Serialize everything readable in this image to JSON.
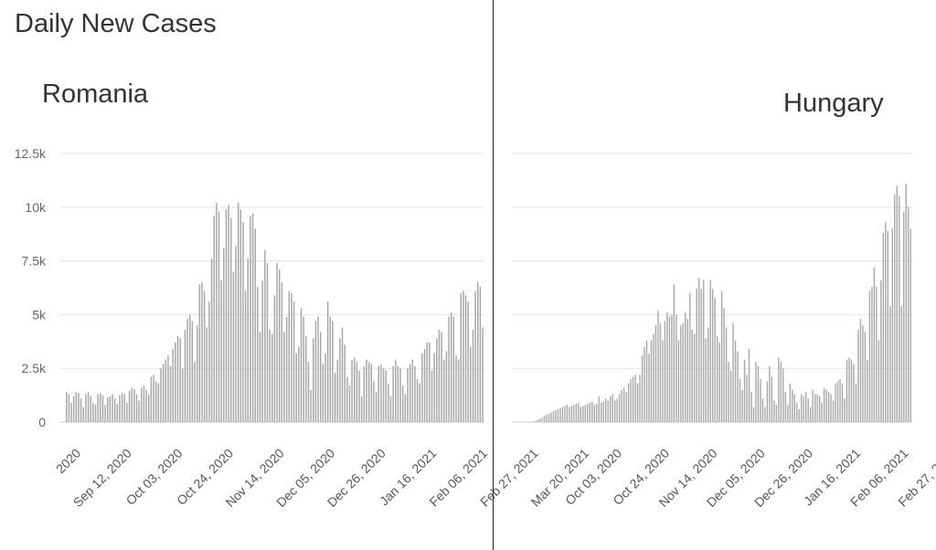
{
  "page": {
    "title": "Daily New Cases"
  },
  "chart_data": [
    {
      "type": "bar",
      "title": "Romania",
      "ylim": [
        0,
        12500
      ],
      "yticks": [
        0,
        2500,
        5000,
        7500,
        10000,
        12500
      ],
      "ytick_labels": [
        "0",
        "2.5k",
        "5k",
        "7.5k",
        "10k",
        "12.5k"
      ],
      "x_tick_labels": [
        "2020",
        "Sep 12, 2020",
        "Oct 03, 2020",
        "Oct 24, 2020",
        "Nov 14, 2020",
        "Dec 05, 2020",
        "Dec 26, 2020",
        "Jan 16, 2021",
        "Feb 06, 2021",
        "Feb 27, 2021",
        "Mar 20, 2021"
      ],
      "x_tick_index": [
        5,
        26,
        47,
        68,
        89,
        110,
        131,
        152,
        173,
        194,
        215
      ],
      "bar_color": "#a6a6a6",
      "grid": true,
      "series": [
        {
          "values": [
            1400,
            1300,
            900,
            1200,
            1400,
            1350,
            1100,
            700,
            1300,
            1400,
            1200,
            900,
            800,
            1300,
            1350,
            1250,
            800,
            1150,
            1200,
            1300,
            1100,
            850,
            1250,
            1350,
            1300,
            900,
            1450,
            1600,
            1550,
            1300,
            1000,
            1600,
            1700,
            1500,
            1300,
            2100,
            2200,
            1900,
            1800,
            2500,
            2700,
            2900,
            3100,
            2600,
            3400,
            3700,
            4000,
            3900,
            2500,
            4300,
            4800,
            5000,
            4700,
            2800,
            4500,
            6400,
            6500,
            6100,
            4400,
            5600,
            7600,
            9600,
            10200,
            9800,
            6600,
            8100,
            9900,
            10100,
            9500,
            7000,
            8200,
            10200,
            9900,
            9300,
            6100,
            7600,
            9600,
            9700,
            9000,
            6300,
            4200,
            6600,
            8000,
            7400,
            4300,
            4100,
            5900,
            7400,
            7100,
            6500,
            4200,
            4900,
            6100,
            6000,
            5600,
            3200,
            3500,
            5300,
            4900,
            4000,
            2800,
            1500,
            3900,
            4700,
            4900,
            4200,
            2700,
            3200,
            5600,
            4900,
            4700,
            2300,
            2900,
            3900,
            4400,
            3600,
            2100,
            1700,
            2900,
            3000,
            2800,
            2400,
            1200,
            2600,
            2900,
            2800,
            2700,
            1900,
            1400,
            2600,
            2700,
            2500,
            2400,
            1800,
            1200,
            2600,
            2900,
            2600,
            2500,
            1700,
            1300,
            2500,
            2700,
            2900,
            2600,
            2000,
            1800,
            3200,
            3400,
            3700,
            3700,
            2400,
            3200,
            3900,
            4300,
            4200,
            2900,
            3300,
            4900,
            5100,
            4900,
            3100,
            2900,
            6000,
            6100,
            5900,
            5600,
            3500,
            4300,
            6100,
            6500,
            6300,
            4400
          ]
        }
      ]
    },
    {
      "type": "bar",
      "title": "Hungary",
      "ylim": [
        0,
        12500
      ],
      "yticks": [
        0,
        2500,
        5000,
        7500,
        10000,
        12500
      ],
      "x_tick_labels": [
        "Oct 03, 2020",
        "Oct 24, 2020",
        "Nov 14, 2020",
        "Dec 05, 2020",
        "Dec 26, 2020",
        "Jan 16, 2021",
        "Feb 06, 2021",
        "Feb 27, 2021",
        "Mar 20, 2021"
      ],
      "x_tick_index": [
        47,
        68,
        89,
        110,
        131,
        152,
        173,
        194,
        215
      ],
      "bar_color": "#a6a6a6",
      "grid": true,
      "series": [
        {
          "values": [
            0,
            0,
            0,
            0,
            0,
            0,
            0,
            0,
            0,
            0,
            50,
            100,
            150,
            200,
            300,
            350,
            400,
            450,
            500,
            550,
            600,
            650,
            700,
            750,
            800,
            700,
            750,
            800,
            850,
            900,
            700,
            750,
            800,
            850,
            900,
            950,
            800,
            850,
            1200,
            900,
            950,
            1100,
            1000,
            1200,
            1300,
            1000,
            1100,
            1300,
            1500,
            1600,
            1400,
            1800,
            2000,
            2100,
            2200,
            1800,
            2200,
            3100,
            3500,
            3800,
            3200,
            3800,
            4100,
            4500,
            5200,
            4600,
            3800,
            4700,
            5100,
            4900,
            5000,
            6400,
            5000,
            3800,
            4500,
            4600,
            5100,
            4800,
            6000,
            4300,
            4100,
            6200,
            6700,
            6200,
            6600,
            3900,
            4400,
            6600,
            6200,
            5800,
            4000,
            3700,
            6100,
            5300,
            4400,
            2800,
            2400,
            4600,
            3800,
            3300,
            2000,
            1500,
            2900,
            2200,
            3400,
            1400,
            700,
            2800,
            2600,
            2000,
            1100,
            700,
            1900,
            2600,
            2100,
            1000,
            800,
            3000,
            2800,
            2500,
            1400,
            800,
            1800,
            1500,
            1300,
            900,
            600,
            1300,
            1200,
            1400,
            1100,
            700,
            1500,
            1300,
            1300,
            1200,
            900,
            1600,
            1500,
            1400,
            1300,
            1000,
            1800,
            1900,
            2000,
            1800,
            1100,
            2900,
            3000,
            2900,
            2700,
            1800,
            4300,
            4800,
            4500,
            4200,
            2900,
            6100,
            6300,
            7200,
            6300,
            3800,
            6600,
            8800,
            9300,
            8900,
            5400,
            9000,
            10600,
            11000,
            10500,
            5400,
            9800,
            11100,
            10000,
            9000
          ]
        }
      ]
    }
  ]
}
